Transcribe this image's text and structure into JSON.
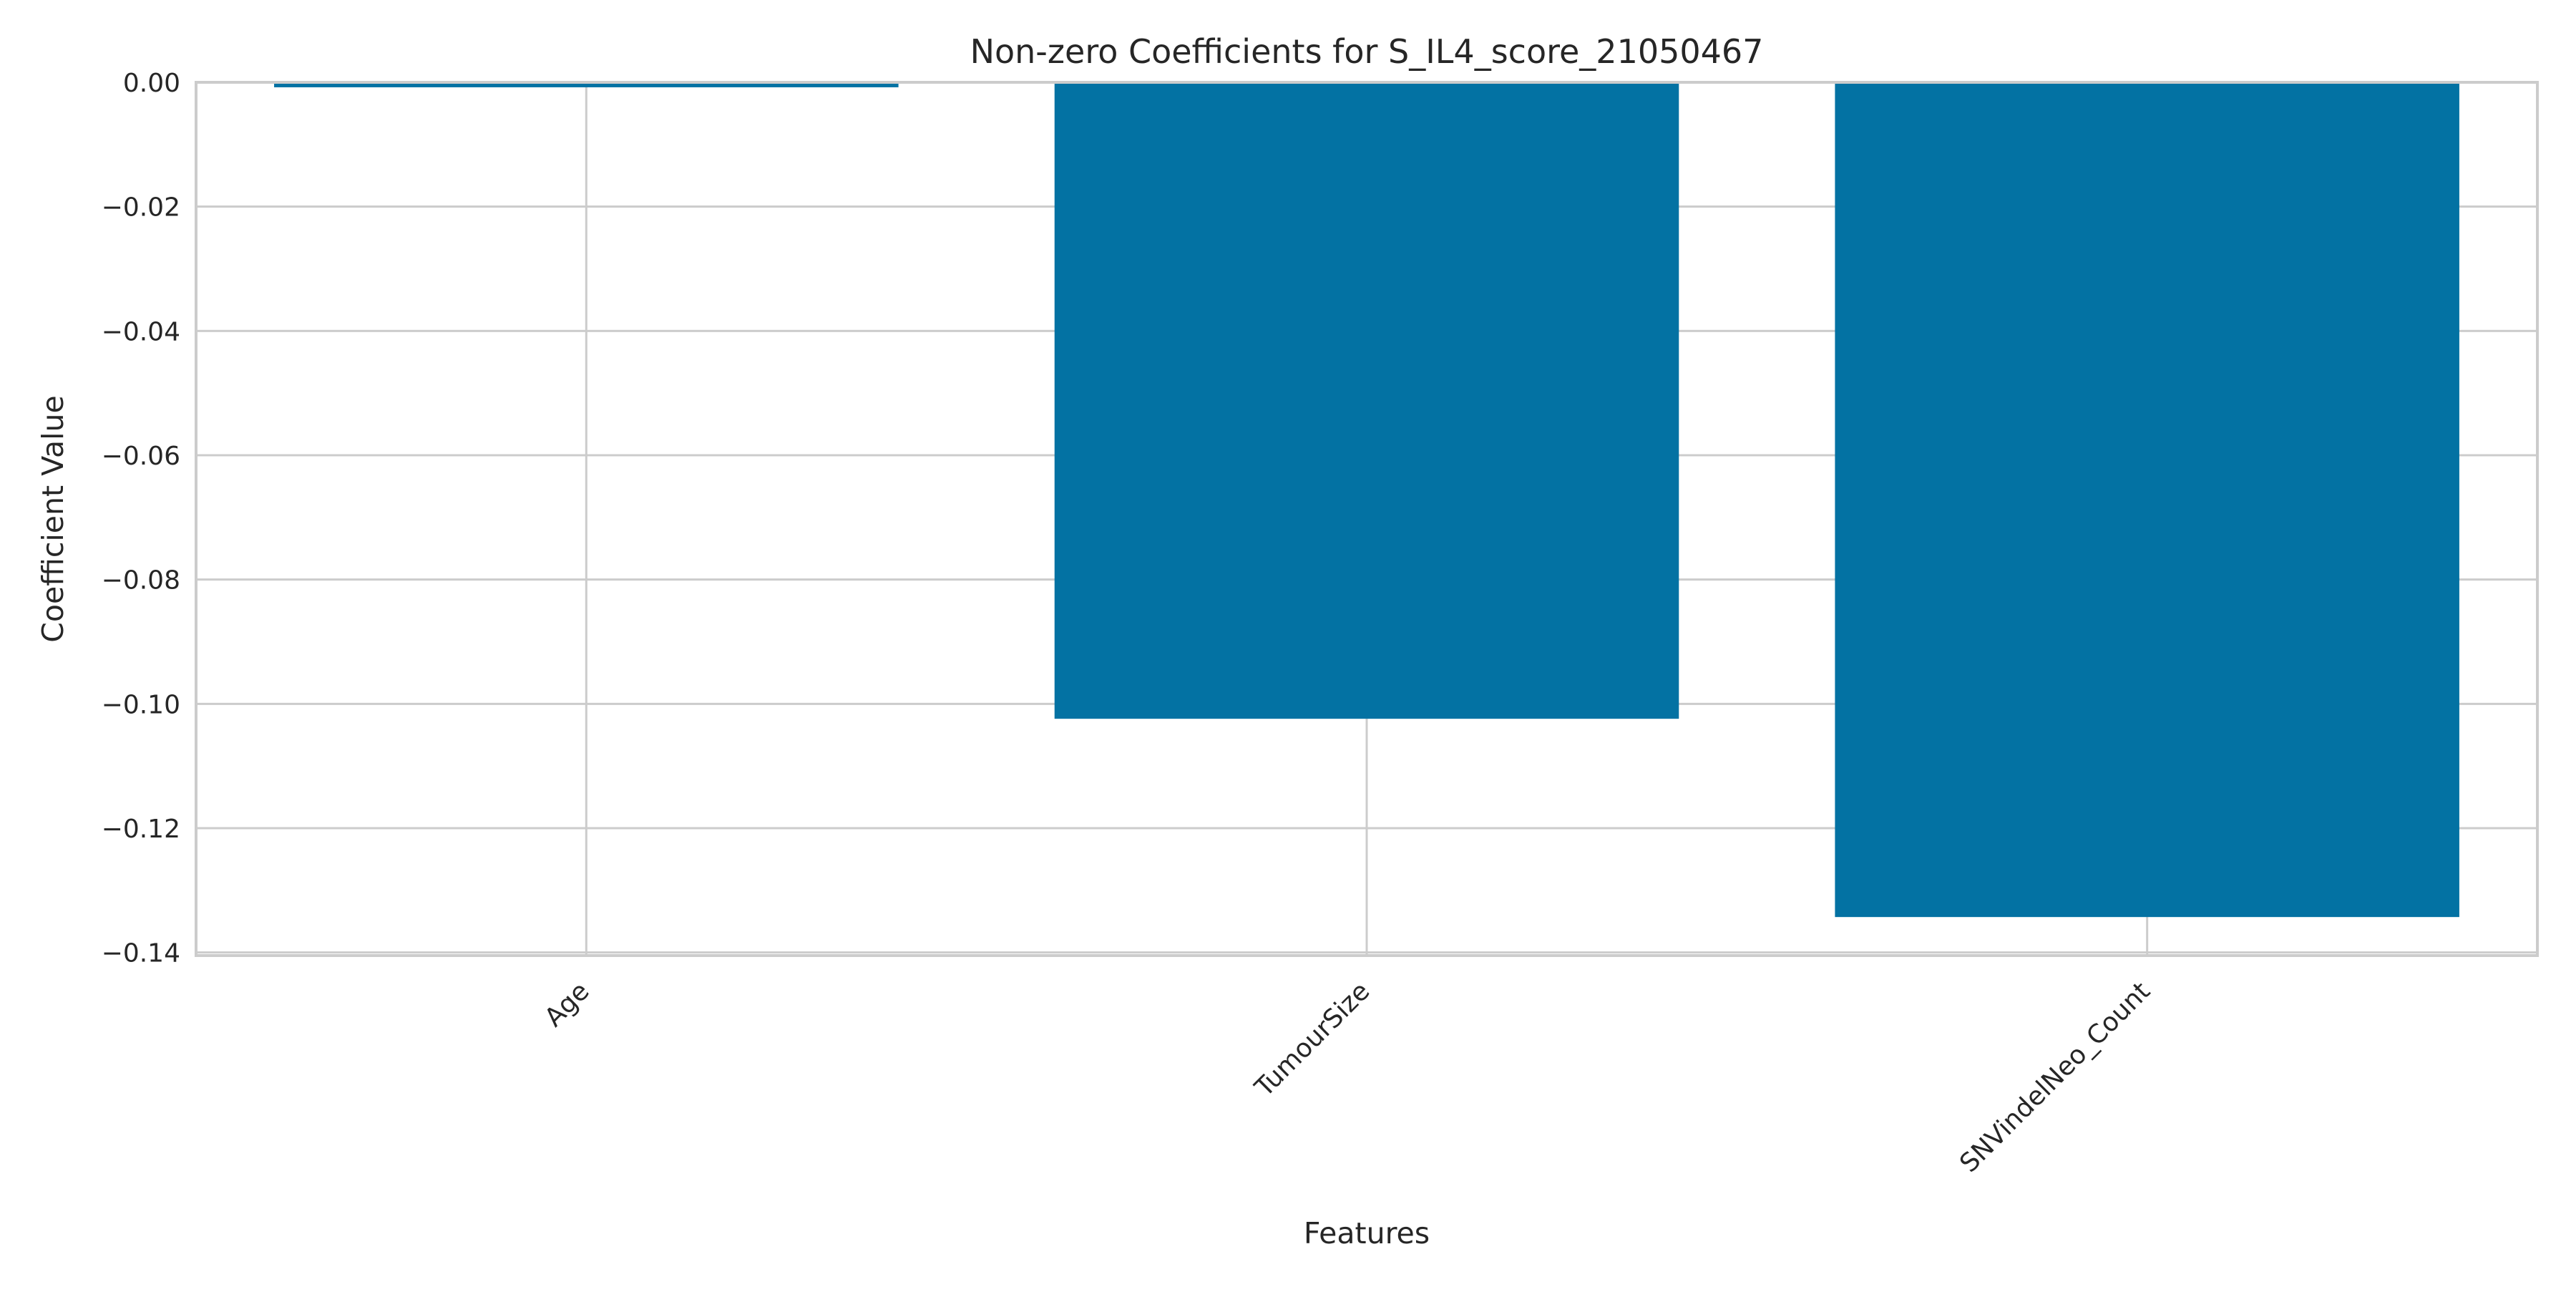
{
  "chart_data": {
    "type": "bar",
    "title": "Non-zero Coefficients for S_IL4_score_21050467",
    "xlabel": "Features",
    "ylabel": "Coefficient Value",
    "categories": [
      "Age",
      "TumourSize",
      "SNVindelNeo_Count"
    ],
    "values": [
      -0.0008,
      -0.1024,
      -0.1343
    ],
    "ylim": [
      -0.1405,
      0.0
    ],
    "yticks": [
      0.0,
      -0.02,
      -0.04,
      -0.06,
      -0.08,
      -0.1,
      -0.12,
      -0.14
    ],
    "ytick_labels": [
      "0.00",
      "−0.02",
      "−0.04",
      "−0.06",
      "−0.08",
      "−0.10",
      "−0.12",
      "−0.14"
    ],
    "xtick_rotation": -45,
    "grid": true,
    "colors": {
      "bar": "#0372a3",
      "grid": "#cccccc",
      "spine": "#cccccc",
      "text": "#262626",
      "background": "#ffffff"
    }
  }
}
